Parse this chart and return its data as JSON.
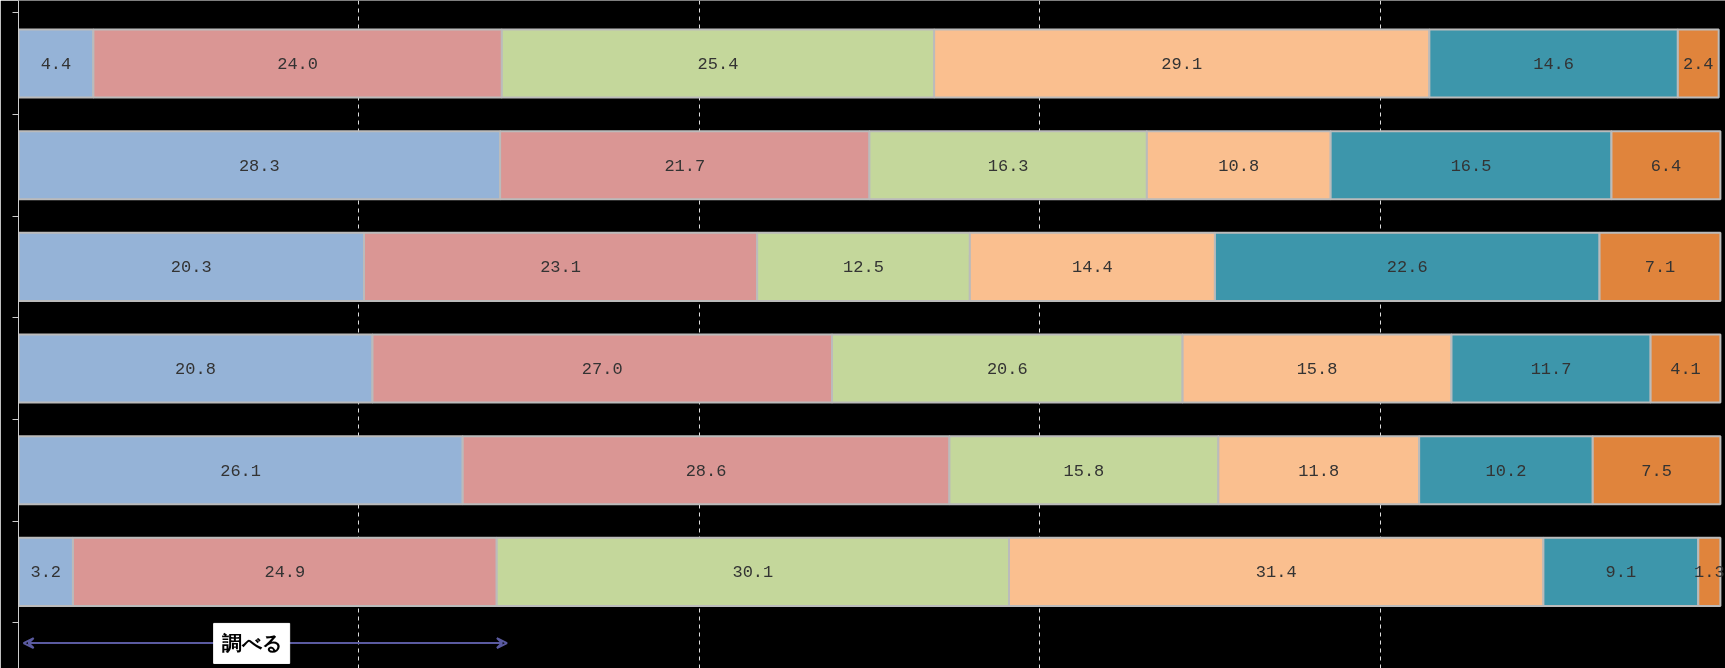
{
  "chart_data": {
    "type": "bar",
    "orientation": "horizontal",
    "stacked": true,
    "categories": [
      null,
      null,
      null,
      null,
      null,
      null
    ],
    "series": [
      {
        "color": "#95b3d7",
        "values": [
          4.4,
          28.3,
          20.3,
          20.8,
          26.1,
          3.2
        ],
        "value_labels": [
          "4.4",
          "28.3",
          "20.3",
          "20.8",
          "26.1",
          "3.2"
        ]
      },
      {
        "color": "#da9694",
        "values": [
          24.0,
          21.7,
          23.1,
          27.0,
          28.6,
          24.9
        ],
        "value_labels": [
          "24.0",
          "21.7",
          "23.1",
          "27.0",
          "28.6",
          "24.9"
        ]
      },
      {
        "color": "#c4d79b",
        "values": [
          25.4,
          16.3,
          12.5,
          20.6,
          15.8,
          30.1
        ],
        "value_labels": [
          "25.4",
          "16.3",
          "12.5",
          "20.6",
          "15.8",
          "30.1"
        ]
      },
      {
        "color": "#fabf8f",
        "values": [
          29.1,
          10.8,
          14.4,
          15.8,
          11.8,
          31.4
        ],
        "value_labels": [
          "29.1",
          "10.8",
          "14.4",
          "15.8",
          "11.8",
          "31.4"
        ]
      },
      {
        "color": "#3d96ab",
        "values": [
          14.6,
          16.5,
          22.6,
          11.7,
          10.2,
          9.1
        ],
        "value_labels": [
          "14.6",
          "16.5",
          "22.6",
          "11.7",
          "10.2",
          "9.1"
        ]
      },
      {
        "color": "#e0843c",
        "values": [
          2.4,
          6.4,
          7.1,
          4.1,
          7.5,
          1.3
        ],
        "value_labels": [
          "2.4",
          "6.4",
          "7.1",
          "4.1",
          "7.5",
          "1.3"
        ]
      }
    ],
    "xlim": [
      0,
      100.3
    ],
    "xticks": [
      {
        "value": 20,
        "label": null
      },
      {
        "value": 40,
        "label": null
      },
      {
        "value": 60,
        "label": null
      },
      {
        "value": 80,
        "label": null
      }
    ],
    "grid": "x",
    "tick_labels": false,
    "annotations": [
      "調べる"
    ]
  }
}
